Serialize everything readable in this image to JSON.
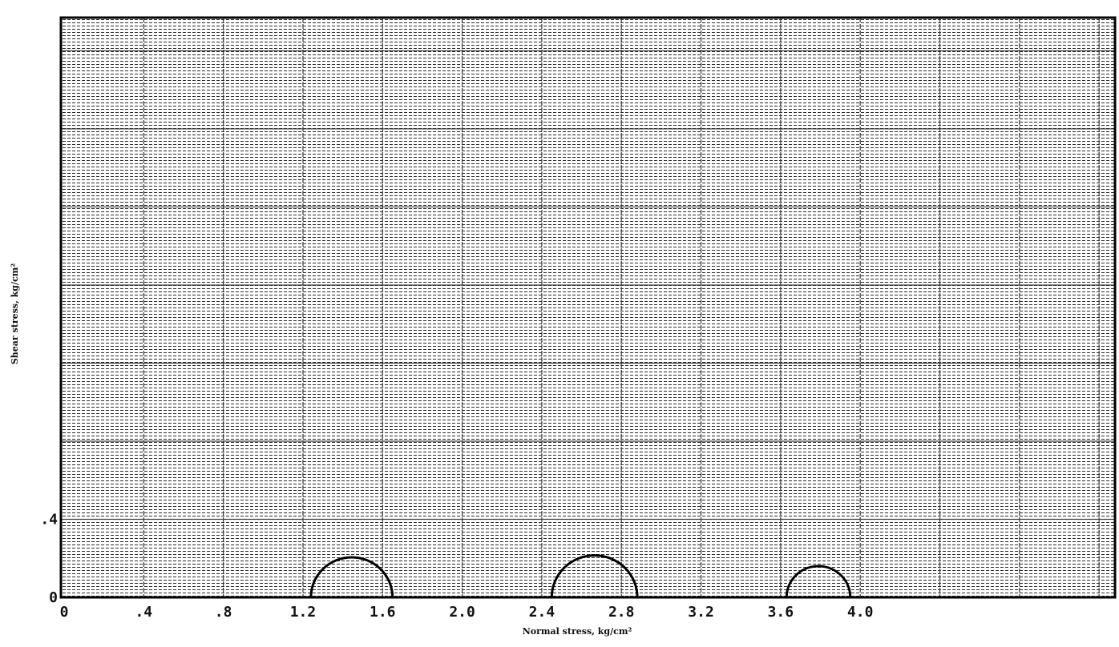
{
  "chart_data": {
    "type": "scatter",
    "title": "",
    "xlabel": "Normal stress, kg/cm²",
    "ylabel": "Shear stress, kg/cm²",
    "xlim": [
      0,
      5.28
    ],
    "ylim": [
      0,
      2.97
    ],
    "grid": true,
    "x_ticks": [
      {
        "value": 0,
        "label": "0"
      },
      {
        "value": 0.4,
        "label": ".4"
      },
      {
        "value": 0.8,
        "label": ".8"
      },
      {
        "value": 1.2,
        "label": "1.2"
      },
      {
        "value": 1.6,
        "label": "1.6"
      },
      {
        "value": 2.0,
        "label": "2.0"
      },
      {
        "value": 2.4,
        "label": "2.4"
      },
      {
        "value": 2.8,
        "label": "2.8"
      },
      {
        "value": 3.2,
        "label": "3.2"
      },
      {
        "value": 3.6,
        "label": "3.6"
      },
      {
        "value": 4.0,
        "label": "4.0"
      }
    ],
    "y_ticks": [
      {
        "value": 0,
        "label": "0"
      },
      {
        "value": 0.4,
        "label": ".4"
      }
    ],
    "mohr_circles": [
      {
        "sigma3": 1.24,
        "sigma1": 1.65
      },
      {
        "sigma3": 2.45,
        "sigma1": 2.88
      },
      {
        "sigma3": 3.63,
        "sigma1": 3.95
      }
    ]
  }
}
